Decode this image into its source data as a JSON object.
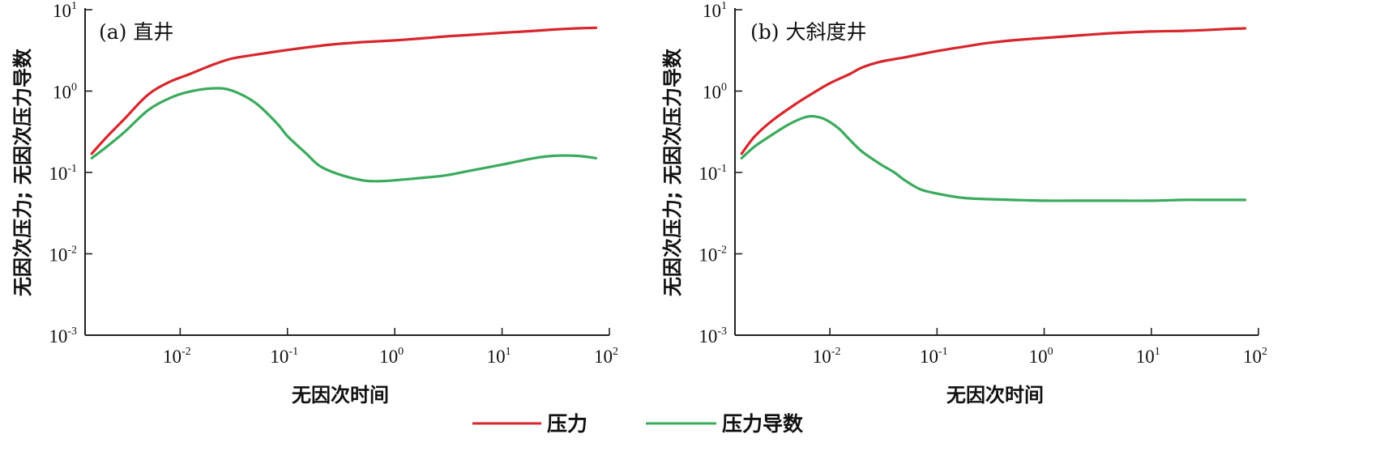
{
  "legend": {
    "items": [
      {
        "label": "压力",
        "color": "#d7262c"
      },
      {
        "label": "压力导数",
        "color": "#3aaa5c"
      }
    ]
  },
  "chart_data": [
    {
      "type": "line",
      "title": "(a) 直井",
      "xlabel": "无因次时间",
      "ylabel": "无因次压力; 无因次压力导数",
      "xscale": "log",
      "yscale": "log",
      "xlim": [
        0.0013,
        100
      ],
      "ylim": [
        0.001,
        10
      ],
      "x_ticks": [
        {
          "base": "10",
          "exp": "-2"
        },
        {
          "base": "10",
          "exp": "-1"
        },
        {
          "base": "10",
          "exp": "0"
        },
        {
          "base": "10",
          "exp": "1"
        },
        {
          "base": "10",
          "exp": "2"
        }
      ],
      "x_tick_values": [
        0.01,
        0.1,
        1,
        10,
        100
      ],
      "y_ticks": [
        {
          "base": "10",
          "exp": "-3"
        },
        {
          "base": "10",
          "exp": "-2"
        },
        {
          "base": "10",
          "exp": "-1"
        },
        {
          "base": "10",
          "exp": "0"
        },
        {
          "base": "10",
          "exp": "1"
        }
      ],
      "y_tick_values": [
        0.001,
        0.01,
        0.1,
        1,
        10
      ],
      "series": [
        {
          "name": "压力",
          "color": "#d7262c",
          "x": [
            0.0015,
            0.002,
            0.003,
            0.005,
            0.008,
            0.012,
            0.02,
            0.03,
            0.05,
            0.1,
            0.2,
            0.3,
            0.5,
            1,
            2,
            3,
            5,
            10,
            20,
            30,
            50,
            75
          ],
          "y": [
            0.17,
            0.26,
            0.45,
            0.9,
            1.3,
            1.6,
            2.1,
            2.5,
            2.8,
            3.2,
            3.6,
            3.8,
            4.0,
            4.2,
            4.5,
            4.7,
            4.9,
            5.2,
            5.5,
            5.7,
            5.9,
            6.0
          ]
        },
        {
          "name": "压力导数",
          "color": "#3aaa5c",
          "x": [
            0.0015,
            0.002,
            0.003,
            0.005,
            0.008,
            0.012,
            0.02,
            0.03,
            0.05,
            0.08,
            0.1,
            0.15,
            0.2,
            0.3,
            0.5,
            0.7,
            1,
            2,
            3,
            5,
            10,
            20,
            30,
            50,
            75
          ],
          "y": [
            0.15,
            0.2,
            0.31,
            0.58,
            0.82,
            0.98,
            1.08,
            1.02,
            0.72,
            0.4,
            0.28,
            0.17,
            0.12,
            0.095,
            0.08,
            0.078,
            0.08,
            0.087,
            0.092,
            0.105,
            0.125,
            0.15,
            0.16,
            0.16,
            0.15
          ]
        }
      ]
    },
    {
      "type": "line",
      "title": "(b) 大斜度井",
      "xlabel": "无因次时间",
      "ylabel": "无因次压力; 无因次压力导数",
      "xscale": "log",
      "yscale": "log",
      "xlim": [
        0.0013,
        100
      ],
      "ylim": [
        0.001,
        10
      ],
      "x_ticks": [
        {
          "base": "10",
          "exp": "-2"
        },
        {
          "base": "10",
          "exp": "-1"
        },
        {
          "base": "10",
          "exp": "0"
        },
        {
          "base": "10",
          "exp": "1"
        },
        {
          "base": "10",
          "exp": "2"
        }
      ],
      "x_tick_values": [
        0.01,
        0.1,
        1,
        10,
        100
      ],
      "y_ticks": [
        {
          "base": "10",
          "exp": "-3"
        },
        {
          "base": "10",
          "exp": "-2"
        },
        {
          "base": "10",
          "exp": "-1"
        },
        {
          "base": "10",
          "exp": "0"
        },
        {
          "base": "10",
          "exp": "1"
        }
      ],
      "y_tick_values": [
        0.001,
        0.01,
        0.1,
        1,
        10
      ],
      "series": [
        {
          "name": "压力",
          "color": "#d7262c",
          "x": [
            0.0015,
            0.002,
            0.003,
            0.005,
            0.007,
            0.01,
            0.015,
            0.02,
            0.03,
            0.05,
            0.1,
            0.2,
            0.3,
            0.5,
            1,
            2,
            3,
            5,
            10,
            20,
            30,
            50,
            75
          ],
          "y": [
            0.17,
            0.28,
            0.45,
            0.72,
            0.95,
            1.25,
            1.6,
            1.95,
            2.3,
            2.6,
            3.1,
            3.6,
            3.9,
            4.2,
            4.5,
            4.8,
            5.0,
            5.2,
            5.4,
            5.5,
            5.6,
            5.8,
            5.9
          ]
        },
        {
          "name": "压力导数",
          "color": "#3aaa5c",
          "x": [
            0.0015,
            0.002,
            0.003,
            0.004,
            0.005,
            0.006,
            0.007,
            0.009,
            0.012,
            0.015,
            0.02,
            0.03,
            0.04,
            0.05,
            0.07,
            0.1,
            0.15,
            0.2,
            0.3,
            0.5,
            1,
            2,
            3,
            5,
            10,
            20,
            30,
            50,
            75
          ],
          "y": [
            0.15,
            0.21,
            0.3,
            0.38,
            0.44,
            0.48,
            0.49,
            0.45,
            0.35,
            0.26,
            0.18,
            0.125,
            0.1,
            0.08,
            0.062,
            0.055,
            0.05,
            0.048,
            0.047,
            0.046,
            0.045,
            0.045,
            0.045,
            0.045,
            0.045,
            0.046,
            0.046,
            0.046,
            0.046
          ]
        }
      ]
    }
  ]
}
